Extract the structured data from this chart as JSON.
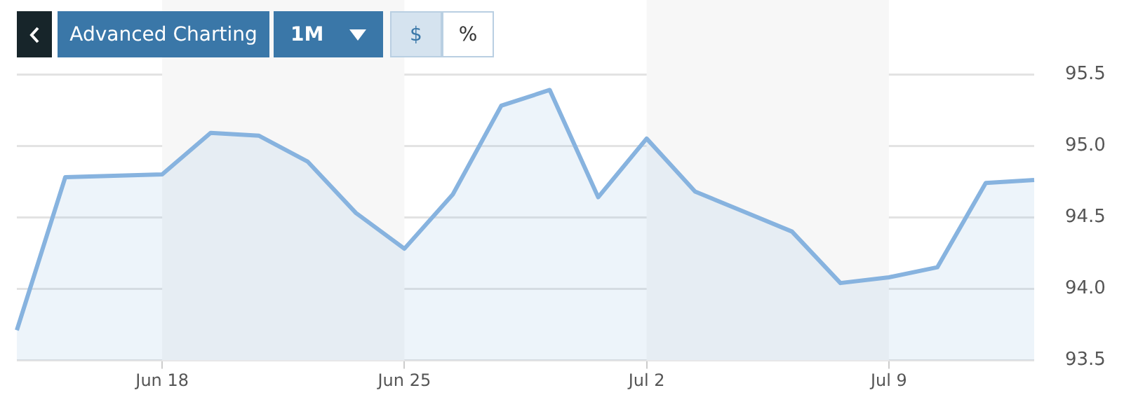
{
  "chart_data": {
    "type": "area",
    "annotations": [
      "Advanced Charting",
      "1M",
      "$",
      "%"
    ],
    "categories": [
      null,
      null,
      null,
      "Jun 18",
      null,
      null,
      null,
      null,
      "Jun 25",
      null,
      null,
      null,
      null,
      "Jul 2",
      null,
      null,
      null,
      null,
      "Jul 9",
      null,
      null,
      null
    ],
    "series": [
      {
        "color": "#87b3df",
        "values": [
          93.71,
          94.78,
          94.79,
          94.8,
          95.09,
          95.07,
          94.89,
          94.53,
          94.28,
          94.66,
          95.28,
          95.39,
          94.64,
          95.05,
          94.68,
          94.54,
          94.4,
          94.04,
          94.08,
          94.15,
          94.74,
          94.76
        ]
      }
    ],
    "ylim": [
      93.5,
      95.5
    ],
    "yticks": [
      {
        "value": 93.5,
        "label": "93.5"
      },
      {
        "value": 94,
        "label": "94.0"
      },
      {
        "value": 94.5,
        "label": "94.5"
      },
      {
        "value": 95,
        "label": "95.0"
      },
      {
        "value": 95.5,
        "label": "95.5"
      }
    ],
    "bands": [
      {
        "axis": "x",
        "from": "Jun 18",
        "to": "Jun 25",
        "label": null,
        "color": "#f7f7f7"
      },
      {
        "axis": "x",
        "from": "Jul 2",
        "to": "Jul 9",
        "label": null,
        "color": "#f7f7f7"
      }
    ],
    "grid": "y",
    "legend": false
  }
}
